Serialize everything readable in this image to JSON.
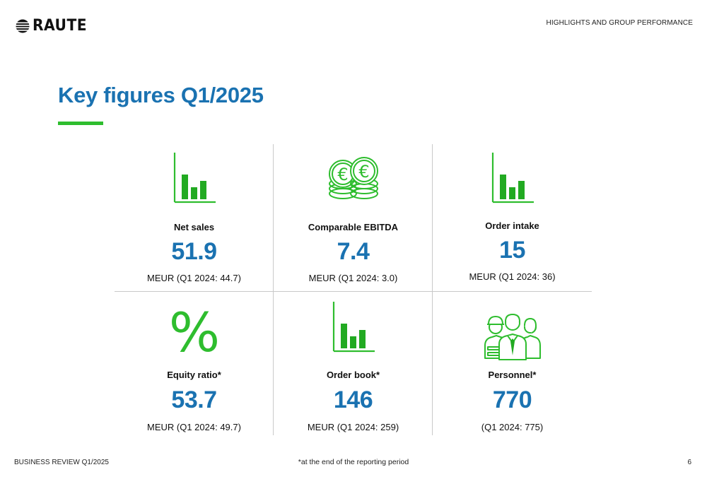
{
  "header": {
    "brand": "RAUTE",
    "section": "HIGHLIGHTS AND GROUP PERFORMANCE"
  },
  "title": "Key figures Q1/2025",
  "colors": {
    "accent_blue": "#1a72b1",
    "accent_green": "#2ebd2e",
    "divider": "#c9c9c9"
  },
  "figures": [
    {
      "icon": "bar-chart-icon",
      "label": "Net sales",
      "value": "51.9",
      "note": "MEUR (Q1 2024: 44.7)"
    },
    {
      "icon": "euro-coins-icon",
      "label": "Comparable EBITDA",
      "value": "7.4",
      "note": "MEUR (Q1 2024: 3.0)"
    },
    {
      "icon": "bar-chart-icon",
      "label": "Order intake",
      "value": "15",
      "note": "MEUR (Q1 2024: 36)"
    },
    {
      "icon": "percent-icon",
      "label": "Equity ratio*",
      "value": "53.7",
      "note": "MEUR (Q1 2024: 49.7)"
    },
    {
      "icon": "bar-chart-icon",
      "label": "Order book*",
      "value": "146",
      "note": "MEUR (Q1 2024: 259)"
    },
    {
      "icon": "personnel-icon",
      "label": "Personnel*",
      "value": "770",
      "note": "(Q1 2024: 775)"
    }
  ],
  "footer": {
    "left": "BUSINESS REVIEW Q1/2025",
    "footnote": "*at the end of the reporting period",
    "page_number": "6"
  }
}
